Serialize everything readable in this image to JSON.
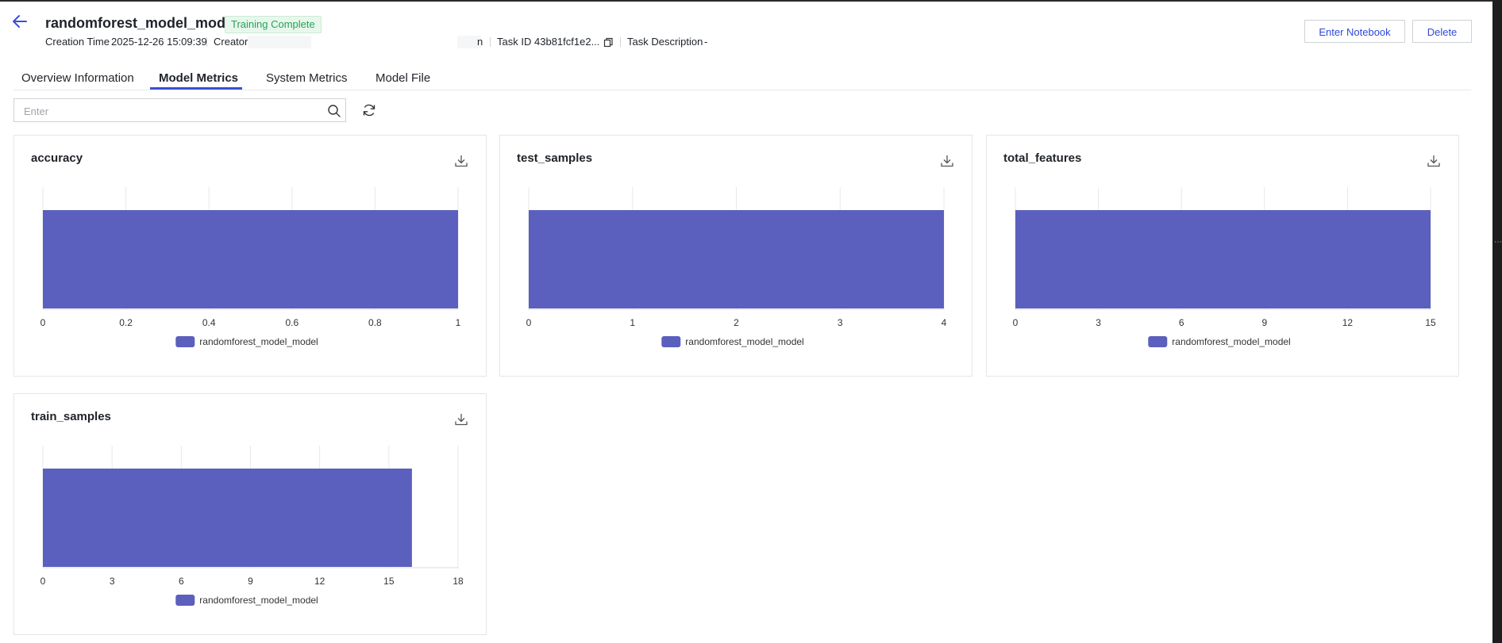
{
  "header": {
    "title": "randomforest_model_model",
    "status": "Training Complete",
    "creation_time_label": "Creation Time",
    "creation_time_value": "2025-12-26 15:09:39",
    "creator_label": "Creator",
    "creator_tail": "n",
    "task_id_label": "Task ID",
    "task_id_value": "43b81fcf1e2...",
    "task_desc_label": "Task Description",
    "task_desc_value": "-"
  },
  "actions": {
    "enter_notebook": "Enter Notebook",
    "delete": "Delete"
  },
  "tabs": [
    {
      "label": "Overview Information",
      "active": false
    },
    {
      "label": "Model Metrics",
      "active": true
    },
    {
      "label": "System Metrics",
      "active": false
    },
    {
      "label": "Model File",
      "active": false
    }
  ],
  "search": {
    "placeholder": "Enter",
    "value": ""
  },
  "colors": {
    "bar": "#5b5fbd",
    "accent": "#3d4fd6",
    "status_green": "#25a35a"
  },
  "chart_data": [
    {
      "type": "bar",
      "orientation": "horizontal",
      "title": "accuracy",
      "series": [
        {
          "name": "randomforest_model_model",
          "values": [
            1
          ]
        }
      ],
      "xlim": [
        0,
        1
      ],
      "ticks": [
        "0",
        "0.2",
        "0.4",
        "0.6",
        "0.8",
        "1"
      ],
      "tick_values": [
        0,
        0.2,
        0.4,
        0.6,
        0.8,
        1
      ],
      "legend": "bottom",
      "grid": true
    },
    {
      "type": "bar",
      "orientation": "horizontal",
      "title": "test_samples",
      "series": [
        {
          "name": "randomforest_model_model",
          "values": [
            4
          ]
        }
      ],
      "xlim": [
        0,
        4
      ],
      "ticks": [
        "0",
        "1",
        "2",
        "3",
        "4"
      ],
      "tick_values": [
        0,
        1,
        2,
        3,
        4
      ],
      "legend": "bottom",
      "grid": true
    },
    {
      "type": "bar",
      "orientation": "horizontal",
      "title": "total_features",
      "series": [
        {
          "name": "randomforest_model_model",
          "values": [
            15
          ]
        }
      ],
      "xlim": [
        0,
        15
      ],
      "ticks": [
        "0",
        "3",
        "6",
        "9",
        "12",
        "15"
      ],
      "tick_values": [
        0,
        3,
        6,
        9,
        12,
        15
      ],
      "legend": "bottom",
      "grid": true
    },
    {
      "type": "bar",
      "orientation": "horizontal",
      "title": "train_samples",
      "series": [
        {
          "name": "randomforest_model_model",
          "values": [
            16
          ]
        }
      ],
      "xlim": [
        0,
        18
      ],
      "ticks": [
        "0",
        "3",
        "6",
        "9",
        "12",
        "15",
        "18"
      ],
      "tick_values": [
        0,
        3,
        6,
        9,
        12,
        15,
        18
      ],
      "legend": "bottom",
      "grid": true
    }
  ]
}
